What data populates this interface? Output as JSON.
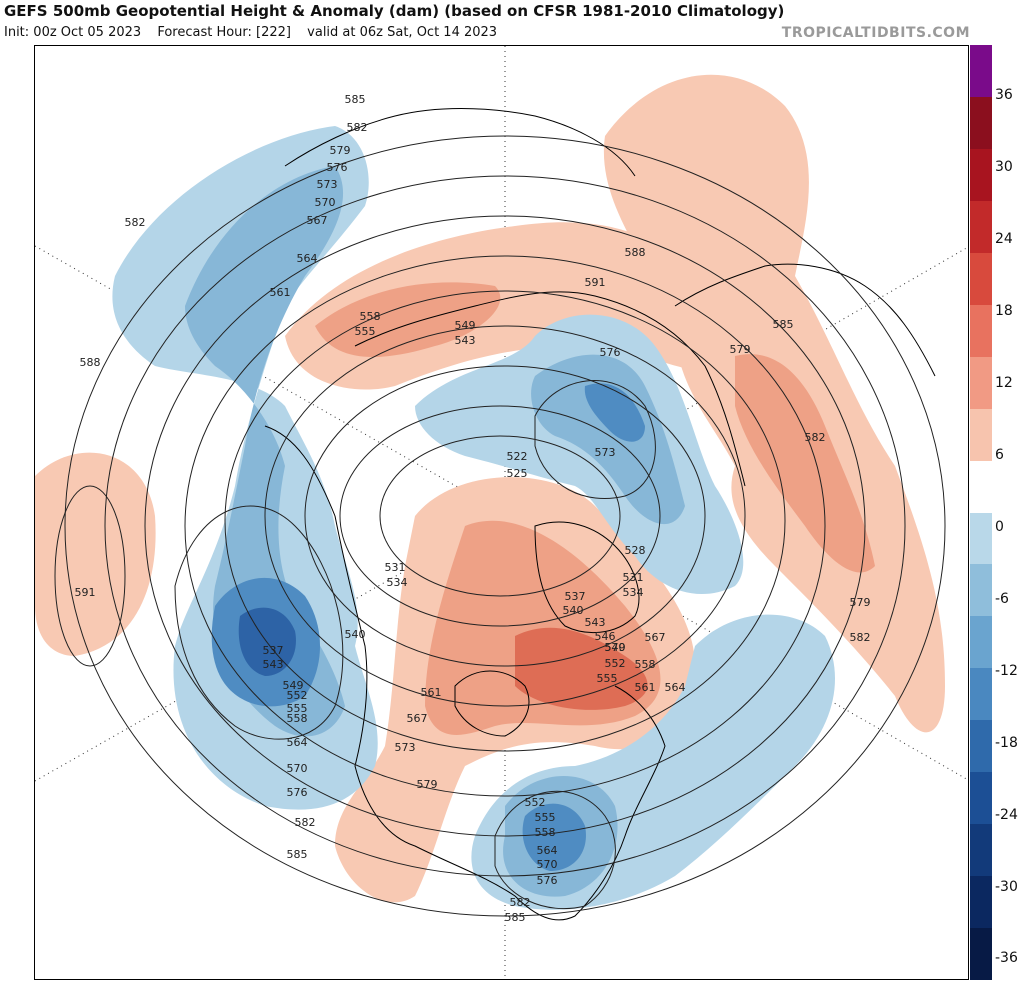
{
  "header": {
    "title": "GEFS 500mb Geopotential Height & Anomaly (dam) (based on CFSR 1981-2010 Climatology)",
    "init": "Init: 00z Oct 05 2023",
    "forecast_hour": "Forecast Hour: [222]",
    "valid": "valid at 06z Sat, Oct 14 2023",
    "site": "TROPICALTIDBITS.COM"
  },
  "colorbar": {
    "labels": [
      "36",
      "30",
      "24",
      "18",
      "12",
      "6",
      "0",
      "-6",
      "-12",
      "-18",
      "-24",
      "-30",
      "-36"
    ],
    "colors": [
      "#7a0b8a",
      "#8b0f1e",
      "#a8141f",
      "#c22a2a",
      "#d84a3d",
      "#e8725f",
      "#f19a84",
      "#f7c4ae",
      "#ffffff",
      "#b9d8e9",
      "#8fbedb",
      "#6aa4cf",
      "#4a88c0",
      "#2f6aab",
      "#1c4f95",
      "#123a7a",
      "#0b2860",
      "#071a45"
    ]
  },
  "map": {
    "height_labels": [
      "585",
      "582",
      "579",
      "576",
      "573",
      "570",
      "567",
      "564",
      "561",
      "558",
      "555",
      "549",
      "543",
      "522",
      "525",
      "528",
      "531",
      "534",
      "537",
      "540",
      "543",
      "546",
      "549",
      "552",
      "555",
      "558",
      "561",
      "564",
      "567",
      "570",
      "573",
      "576",
      "579",
      "582",
      "585",
      "588",
      "591",
      "588",
      "591",
      "582",
      "579",
      "582",
      "537",
      "543",
      "549",
      "552",
      "555",
      "558",
      "564",
      "570",
      "576",
      "582",
      "585",
      "561",
      "567",
      "573",
      "579",
      "552",
      "555",
      "558",
      "564",
      "570",
      "576",
      "582",
      "585",
      "531",
      "534",
      "540"
    ],
    "anomaly_fills": {
      "positive_light": "#f8c9b3",
      "positive_mid": "#eea186",
      "positive_strong": "#de6d55",
      "negative_light": "#b4d5e8",
      "negative_mid": "#87b7d7",
      "negative_strong": "#4f8cc2",
      "negative_core": "#2d63a6"
    }
  }
}
